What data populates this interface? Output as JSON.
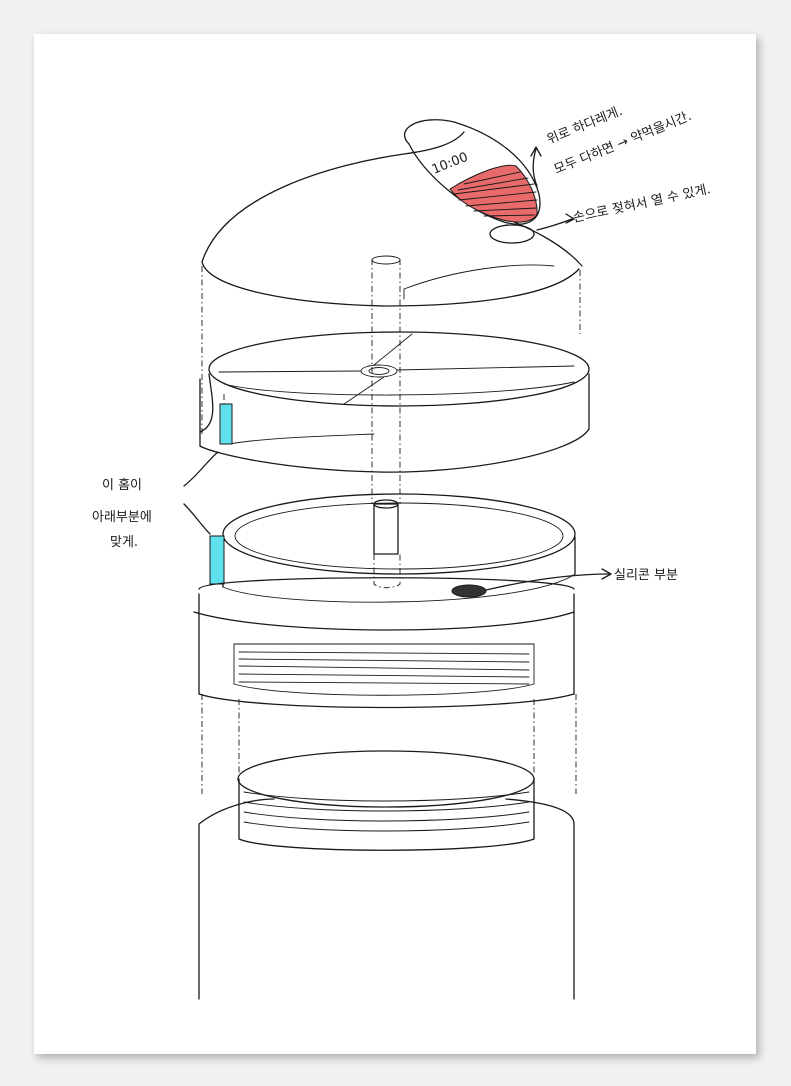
{
  "annotations": {
    "lid_display_time": "10:00",
    "note_top_line1": "위로 하다레게.",
    "note_top_line2": "모두 다하면 → 약먹을시간.",
    "note_button": "손으로 젖혀서 열 수 있게.",
    "note_groove_line1": "이 홈이",
    "note_groove_line2": "아래부분에",
    "note_groove_line3": "맞게.",
    "note_silicone": "실리콘 부분"
  },
  "colors": {
    "paper": "#ffffff",
    "background": "#f1f1f1",
    "ink": "#1a1a1a",
    "alarm_fill": "#e86a6a",
    "groove_fill": "#5fe0ec"
  }
}
